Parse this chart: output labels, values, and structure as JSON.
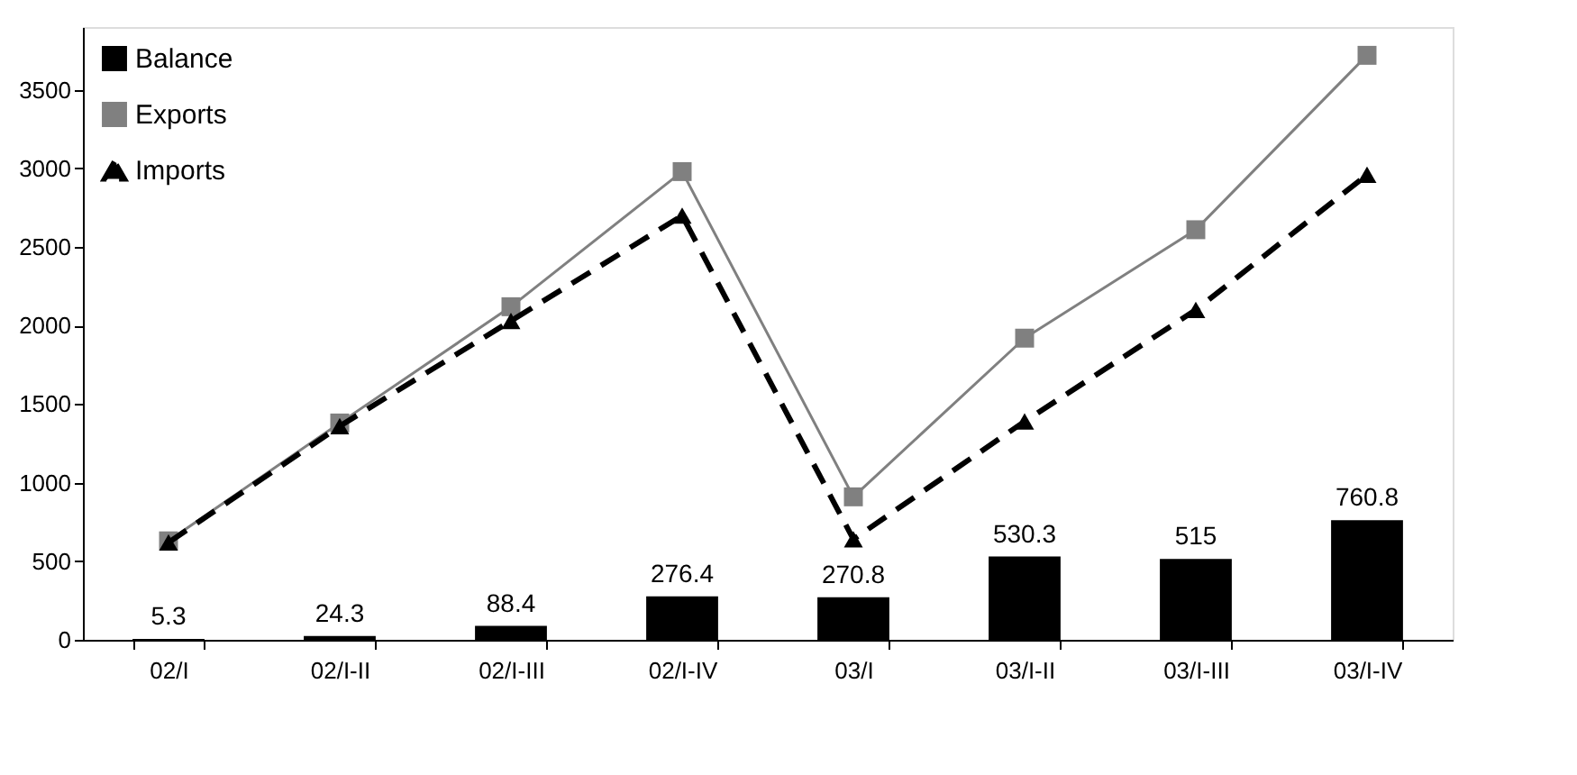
{
  "chart_data": {
    "type": "bar",
    "categories": [
      "02/I",
      "02/I-II",
      "02/I-III",
      "02/I-IV",
      "03/I",
      "03/I-II",
      "03/I-III",
      "03/I-IV"
    ],
    "series": [
      {
        "name": "Balance",
        "color": "#000000",
        "values": [
          5.3,
          24.3,
          88.4,
          276.4,
          270.8,
          530.3,
          515,
          760.8
        ],
        "data_labels": true
      },
      {
        "name": "Exports",
        "type": "line",
        "color": "#808080",
        "marker": "square",
        "line_style": "solid",
        "values": [
          630,
          1380,
          2120,
          2980,
          910,
          1920,
          2610,
          3720
        ]
      },
      {
        "name": "Imports",
        "type": "line",
        "color": "#000000",
        "marker": "triangle",
        "line_style": "dashed",
        "values": [
          620,
          1360,
          2030,
          2700,
          640,
          1390,
          2100,
          2960
        ]
      }
    ],
    "ylim": [
      0,
      3900
    ],
    "yticks": [
      0,
      500,
      1000,
      1500,
      2000,
      2500,
      3000,
      3500
    ],
    "grid": false,
    "legend": "top left"
  }
}
